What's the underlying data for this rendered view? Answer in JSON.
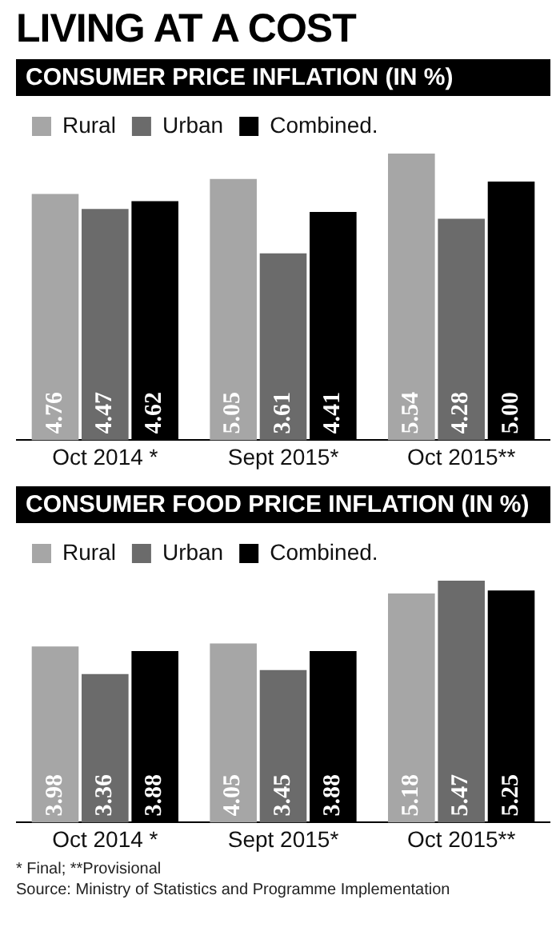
{
  "chart_data": [
    {
      "type": "bar",
      "title": "LIVING AT A COST",
      "subtitle": "CONSUMER PRICE INFLATION (IN %)",
      "categories": [
        "Oct 2014 *",
        "Sept 2015*",
        "Oct 2015**"
      ],
      "series": [
        {
          "name": "Rural",
          "color": "#a6a6a6",
          "values": [
            4.76,
            5.05,
            5.54
          ],
          "value_labels": [
            "4.76",
            "5.05",
            "5.54"
          ]
        },
        {
          "name": "Urban",
          "color": "#6b6b6b",
          "values": [
            4.47,
            3.61,
            4.28
          ],
          "value_labels": [
            "4.47",
            "3.61",
            "4.28"
          ]
        },
        {
          "name": "Combined.",
          "color": "#000000",
          "values": [
            4.62,
            4.41,
            5.0
          ],
          "value_labels": [
            "4.62",
            "4.41",
            "5.00"
          ]
        }
      ],
      "legend": "top left",
      "tick_labels": "x"
    },
    {
      "type": "bar",
      "title": "CONSUMER FOOD PRICE INFLATION (IN %)",
      "categories": [
        "Oct 2014 *",
        "Sept 2015*",
        "Oct 2015**"
      ],
      "series": [
        {
          "name": "Rural",
          "color": "#a6a6a6",
          "values": [
            3.98,
            4.05,
            5.18
          ],
          "value_labels": [
            "3.98",
            "4.05",
            "5.18"
          ]
        },
        {
          "name": "Urban",
          "color": "#6b6b6b",
          "values": [
            3.36,
            3.45,
            5.47
          ],
          "value_labels": [
            "3.36",
            "3.45",
            "5.47"
          ]
        },
        {
          "name": "Combined.",
          "color": "#000000",
          "values": [
            3.88,
            3.88,
            5.25
          ],
          "value_labels": [
            "3.88",
            "3.88",
            "5.25"
          ]
        }
      ],
      "legend": "top left",
      "tick_labels": "x",
      "annotations": [
        "* Final; **Provisional",
        "Source: Ministry of Statistics and Programme Implementation"
      ]
    }
  ]
}
